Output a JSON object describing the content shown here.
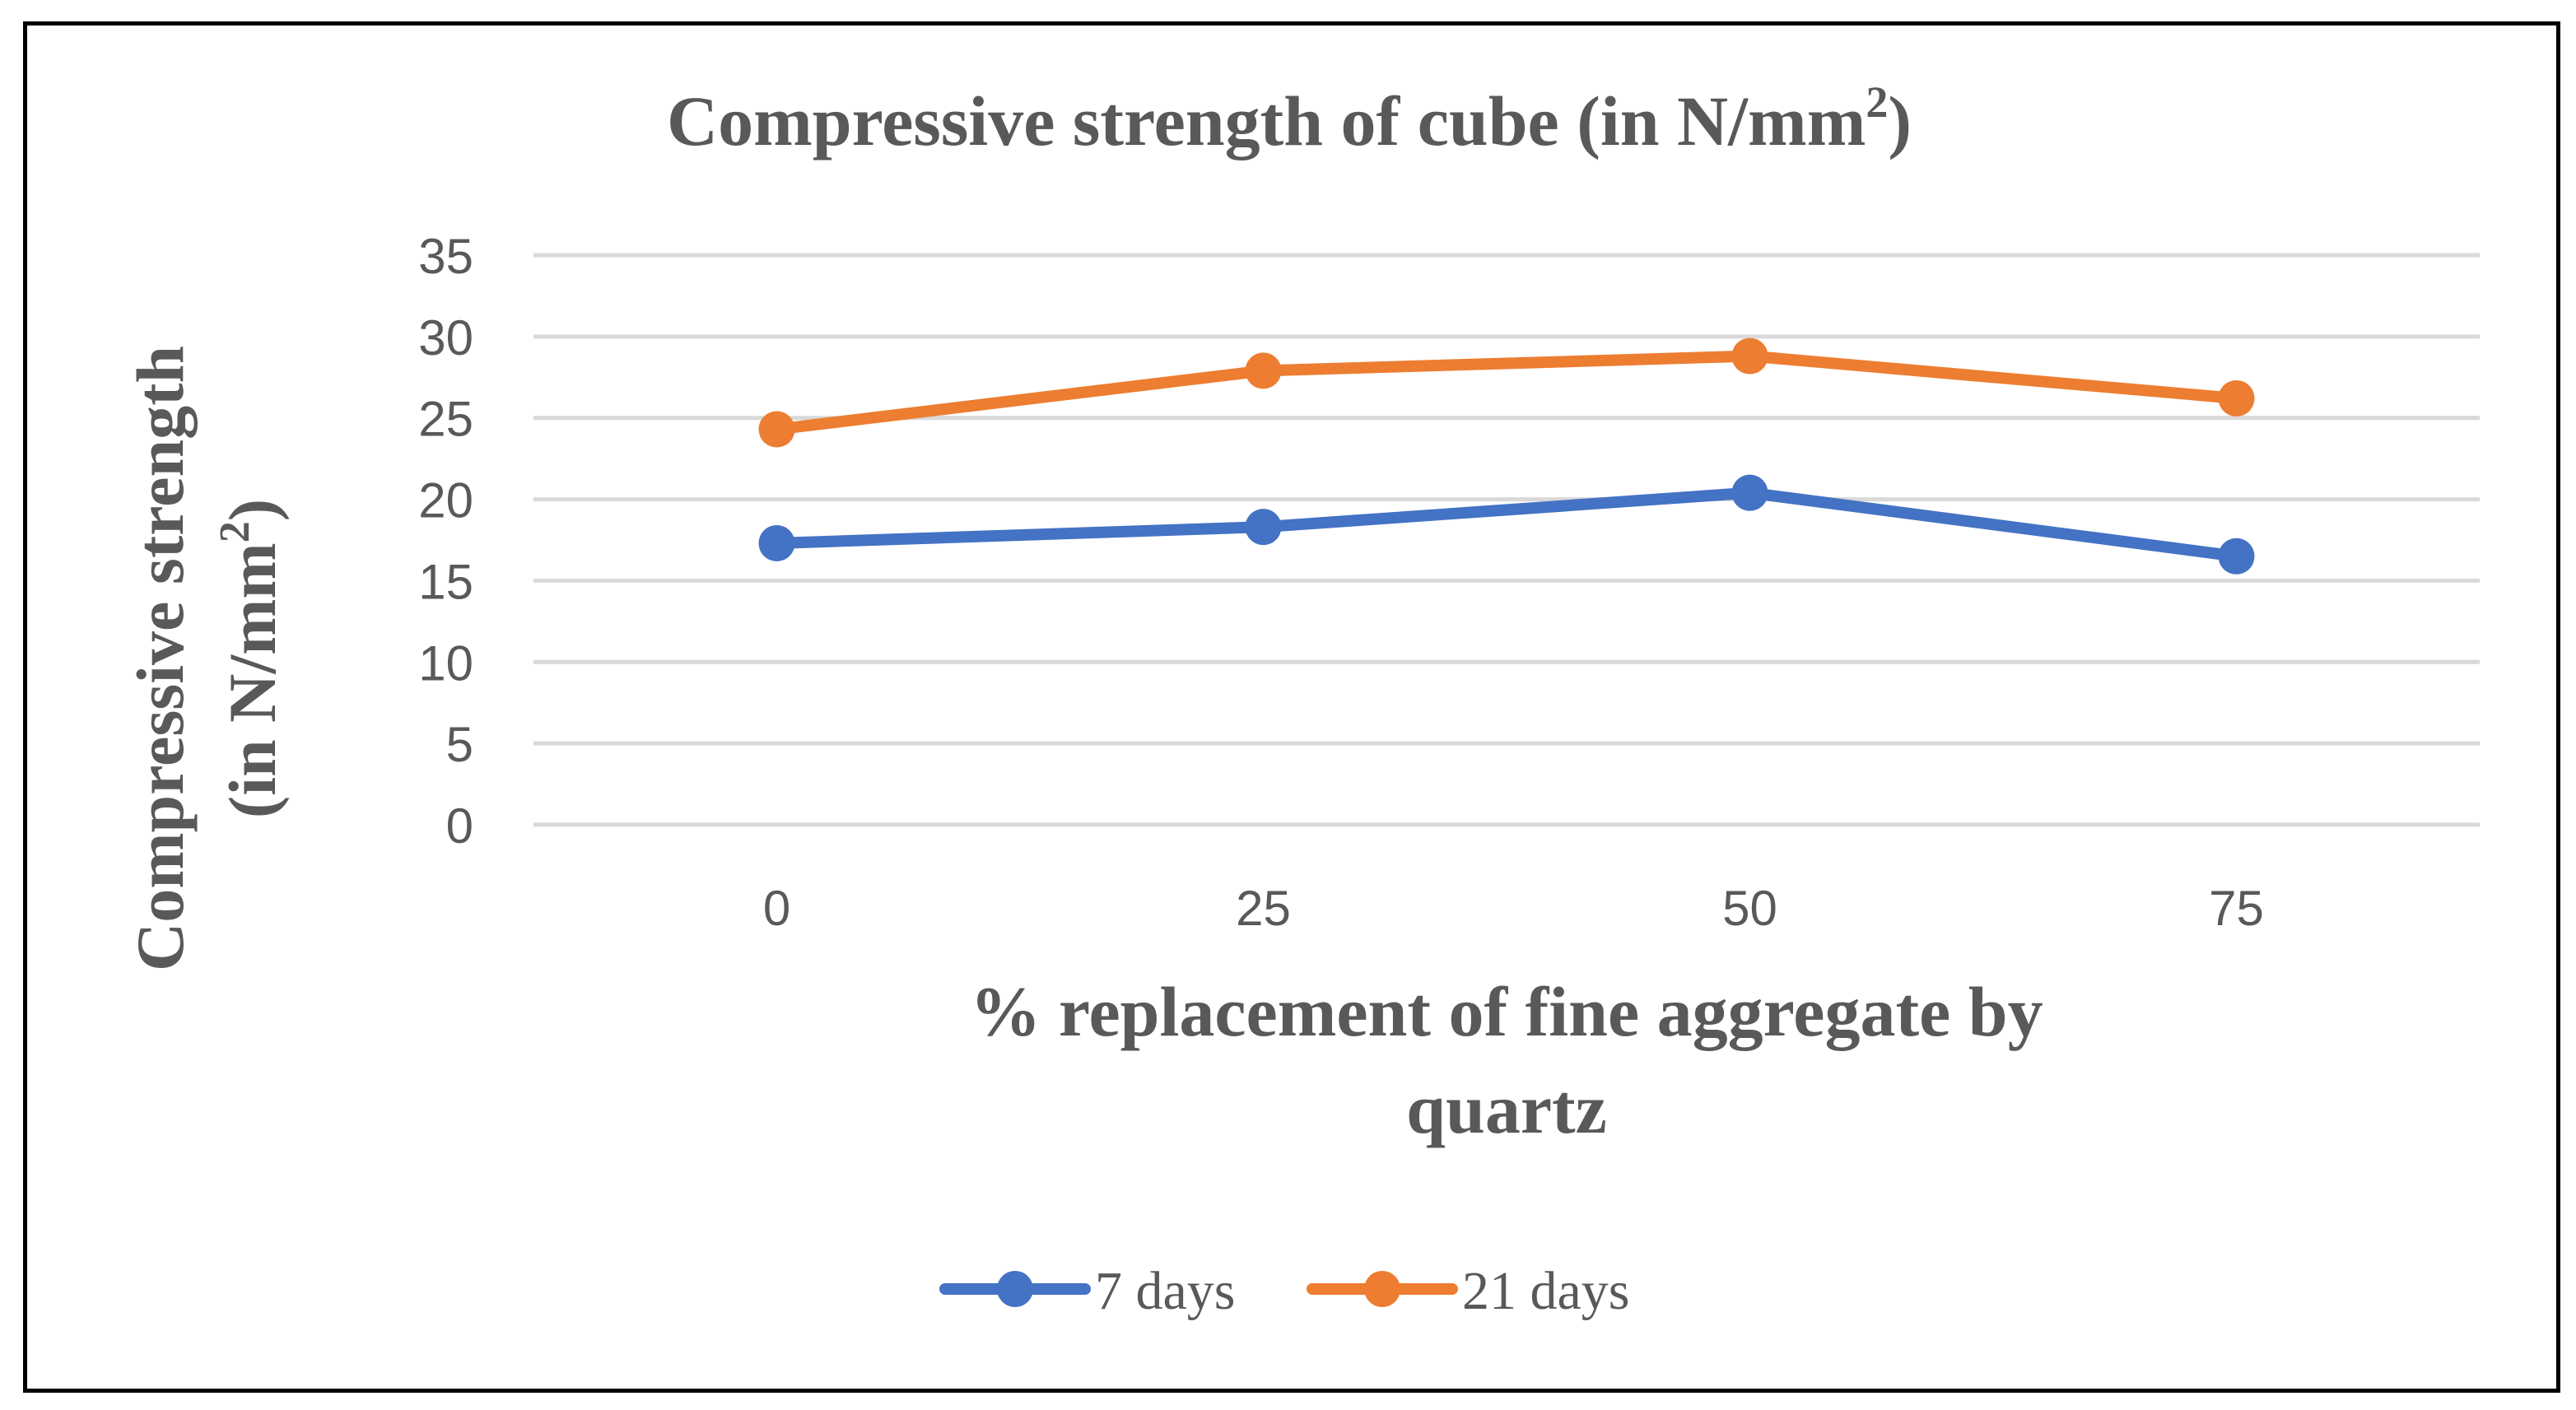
{
  "chart_data": {
    "type": "line",
    "title": "Compressive strength of cube (in N/mm",
    "title_superscript": "2",
    "title_suffix": ")",
    "xlabel_line1": "% replacement of fine aggregate by",
    "xlabel_line2": "quartz",
    "ylabel_line1": "Compressive strength",
    "ylabel_line2": "(in N/mm",
    "ylabel_superscript": "2",
    "ylabel_suffix": ")",
    "categories": [
      "0",
      "25",
      "50",
      "75"
    ],
    "ylim": [
      0,
      35
    ],
    "yticks": [
      "0",
      "5",
      "10",
      "15",
      "20",
      "25",
      "30",
      "35"
    ],
    "grid": true,
    "legend_position": "bottom",
    "series": [
      {
        "name": "7 days",
        "color": "#4472C4",
        "values": [
          17.3,
          18.3,
          20.4,
          16.5
        ]
      },
      {
        "name": "21 days",
        "color": "#ED7D31",
        "values": [
          24.3,
          27.9,
          28.8,
          26.2
        ]
      }
    ]
  }
}
